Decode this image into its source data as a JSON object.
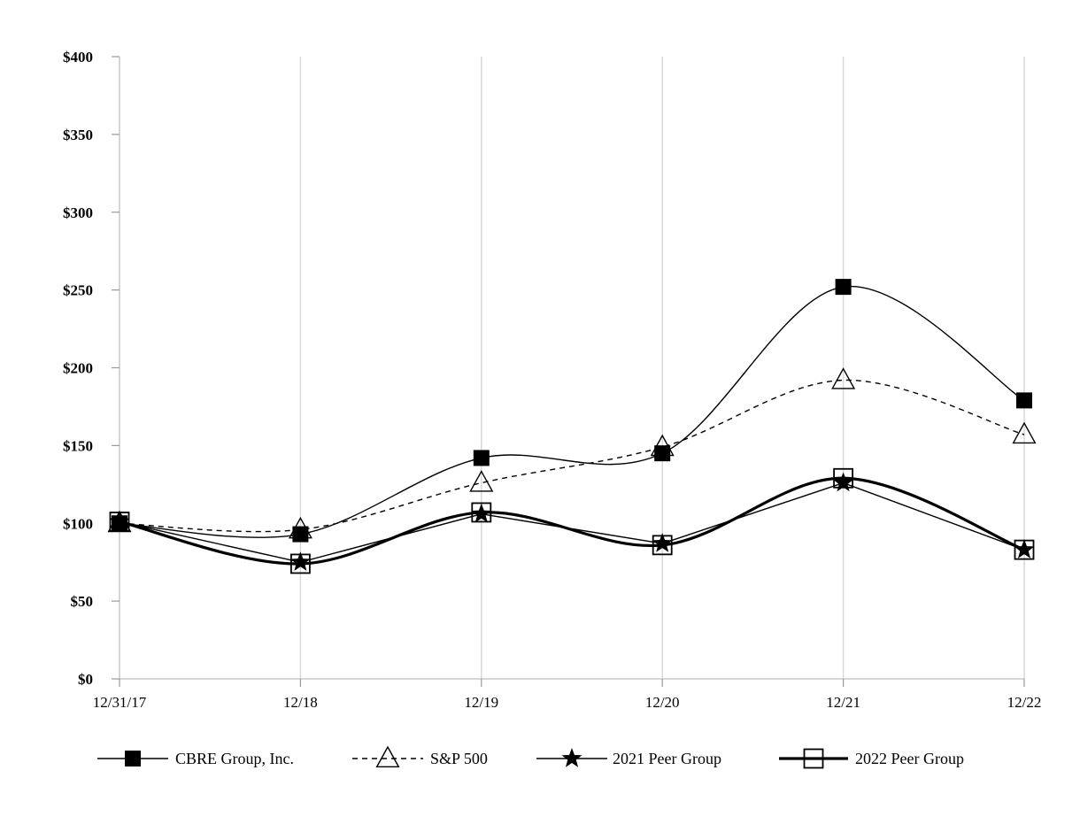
{
  "chart_data": {
    "type": "line",
    "title": "",
    "xlabel": "",
    "ylabel": "",
    "categories": [
      "12/31/17",
      "12/18",
      "12/19",
      "12/20",
      "12/21",
      "12/22"
    ],
    "y_ticks": [
      0,
      50,
      100,
      150,
      200,
      250,
      300,
      350,
      400
    ],
    "y_tick_labels": [
      "$0",
      "$50",
      "$100",
      "$150",
      "$200",
      "$250",
      "$300",
      "$350",
      "$400"
    ],
    "ylim": [
      0,
      400
    ],
    "grid": "vertical",
    "legend_position": "bottom",
    "series": [
      {
        "name": "CBRE Group, Inc.",
        "values": [
          100,
          93,
          142,
          145,
          252,
          179
        ],
        "line": "solid",
        "marker": "filled-square",
        "curve": "smooth"
      },
      {
        "name": "S&P 500",
        "values": [
          100,
          96,
          126,
          149,
          192,
          157
        ],
        "line": "dashed",
        "marker": "open-triangle",
        "curve": "smooth"
      },
      {
        "name": "2021 Peer Group",
        "values": [
          101,
          75,
          106,
          87,
          126,
          83
        ],
        "line": "solid",
        "marker": "star",
        "curve": "straight"
      },
      {
        "name": "2022 Peer Group",
        "values": [
          101,
          74,
          107,
          86,
          129,
          83
        ],
        "line": "bold",
        "marker": "open-square",
        "curve": "smooth"
      }
    ]
  }
}
